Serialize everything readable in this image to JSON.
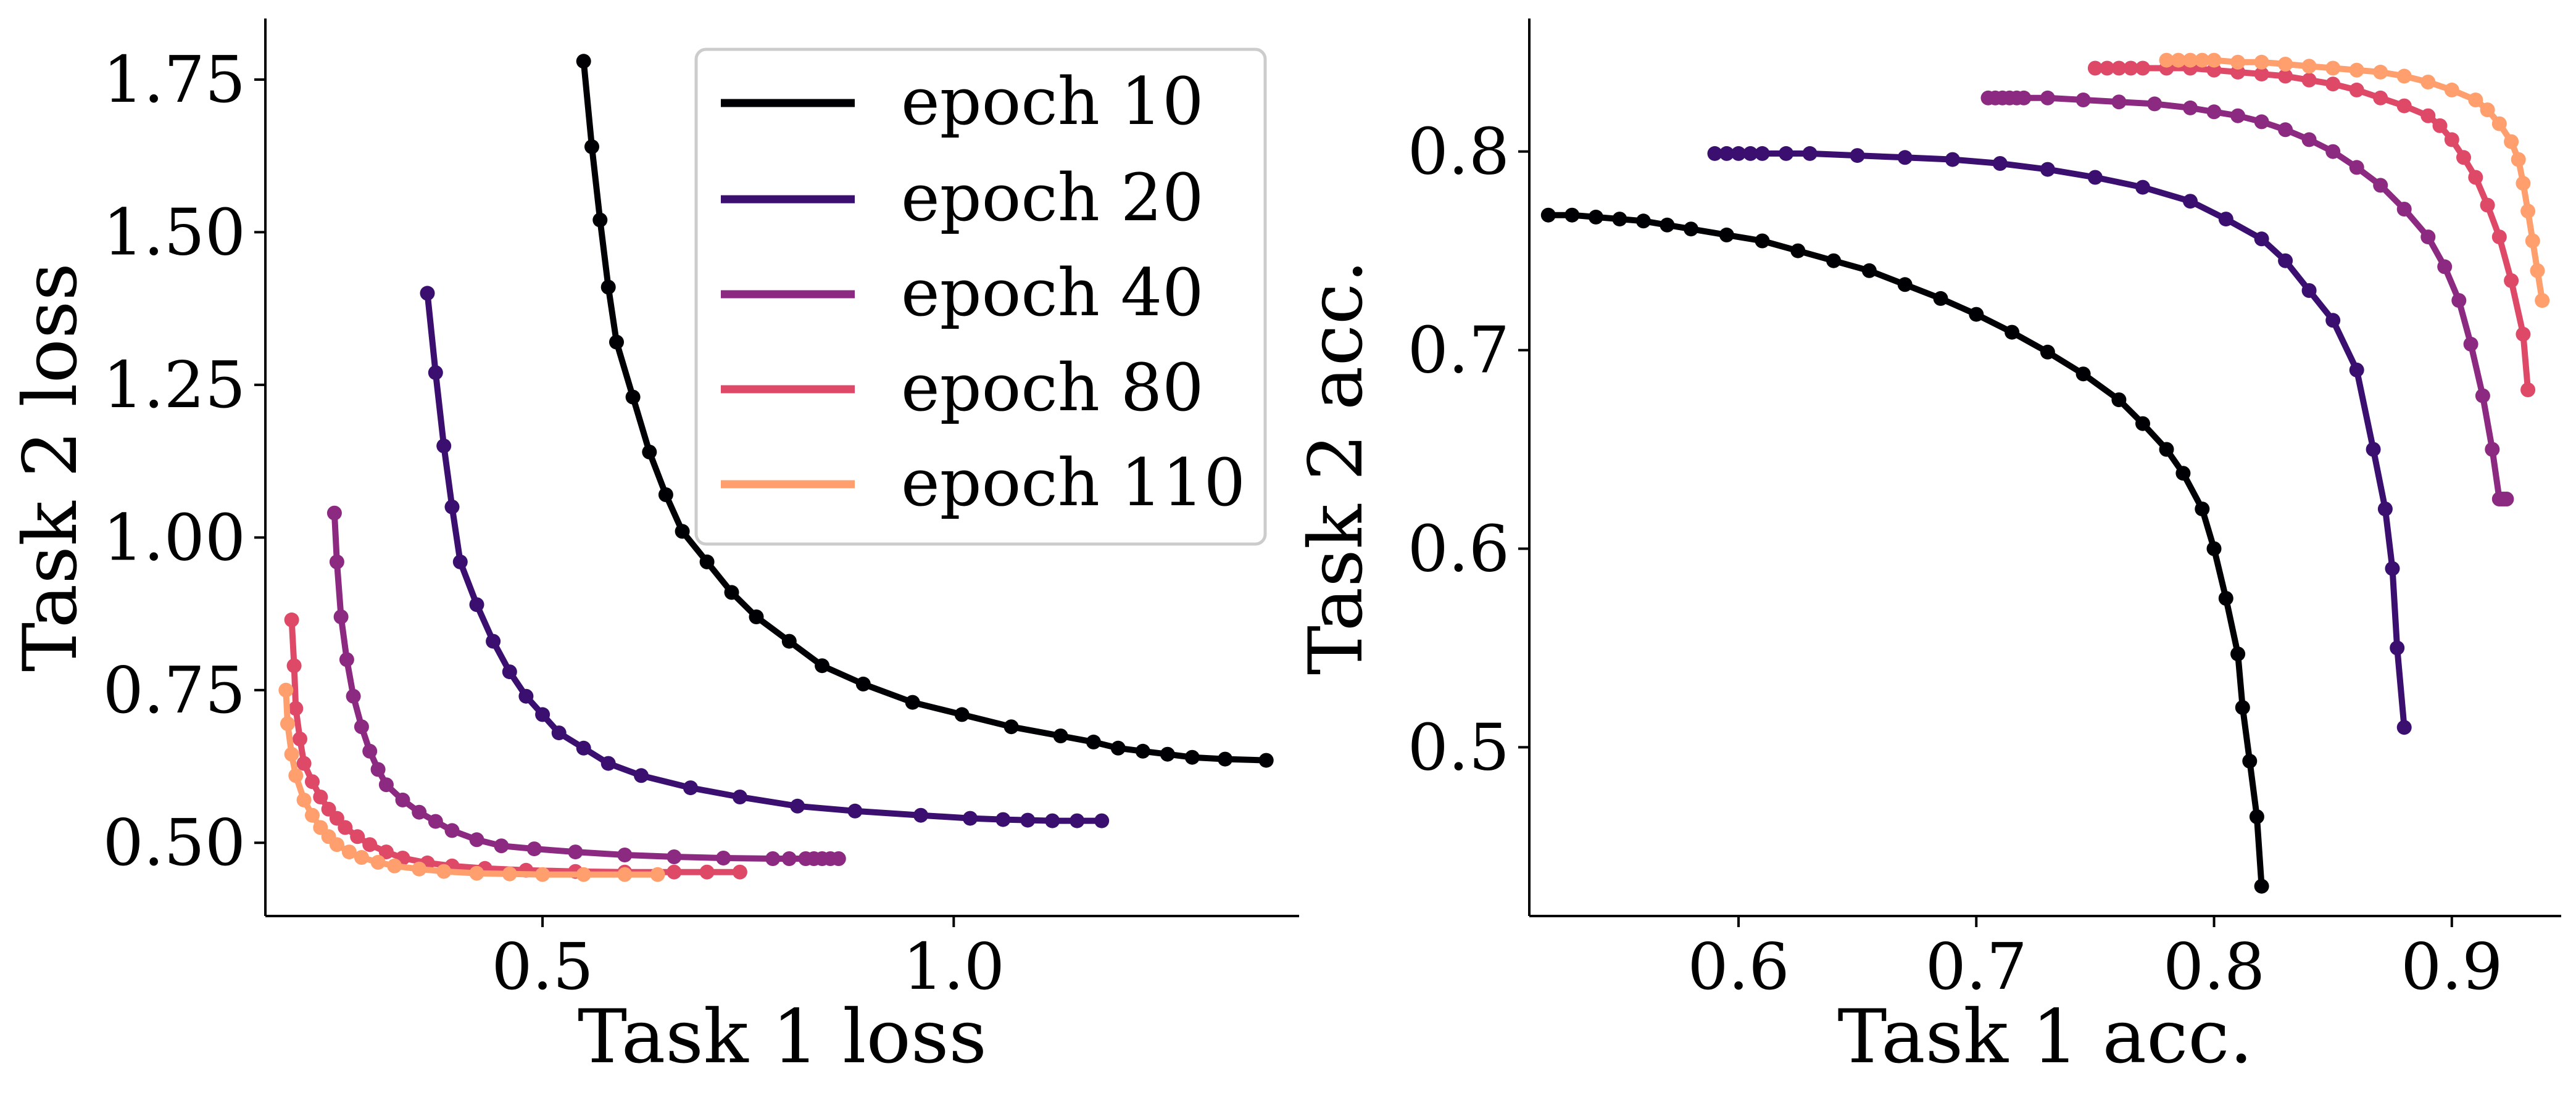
{
  "chart_data": [
    {
      "type": "line",
      "xlabel": "Task 1 loss",
      "ylabel": "Task 2 loss",
      "xlim": [
        0.163,
        1.42
      ],
      "ylim": [
        0.38,
        1.85
      ],
      "xticks": [
        0.5,
        1.0
      ],
      "xtick_labels": [
        "0.5",
        "1.0"
      ],
      "yticks": [
        0.5,
        0.75,
        1.0,
        1.25,
        1.5,
        1.75
      ],
      "ytick_labels": [
        "0.50",
        "0.75",
        "1.00",
        "1.25",
        "1.50",
        "1.75"
      ],
      "grid": false,
      "legend_position": "top-right",
      "series": [
        {
          "name": "epoch 10",
          "color": "#000004",
          "x": [
            0.55,
            0.56,
            0.57,
            0.58,
            0.59,
            0.61,
            0.63,
            0.65,
            0.67,
            0.7,
            0.73,
            0.76,
            0.8,
            0.84,
            0.89,
            0.95,
            1.01,
            1.07,
            1.13,
            1.17,
            1.2,
            1.23,
            1.26,
            1.29,
            1.33,
            1.38
          ],
          "y": [
            1.78,
            1.64,
            1.52,
            1.41,
            1.32,
            1.23,
            1.14,
            1.07,
            1.01,
            0.96,
            0.91,
            0.87,
            0.83,
            0.79,
            0.76,
            0.73,
            0.71,
            0.69,
            0.675,
            0.665,
            0.655,
            0.65,
            0.645,
            0.64,
            0.637,
            0.635
          ]
        },
        {
          "name": "epoch 20",
          "color": "#3b0f70",
          "x": [
            0.36,
            0.37,
            0.38,
            0.39,
            0.4,
            0.42,
            0.44,
            0.46,
            0.48,
            0.5,
            0.52,
            0.55,
            0.58,
            0.62,
            0.68,
            0.74,
            0.81,
            0.88,
            0.96,
            1.02,
            1.06,
            1.09,
            1.12,
            1.15,
            1.18
          ],
          "y": [
            1.4,
            1.27,
            1.15,
            1.05,
            0.96,
            0.89,
            0.83,
            0.78,
            0.74,
            0.71,
            0.68,
            0.655,
            0.63,
            0.61,
            0.59,
            0.575,
            0.56,
            0.552,
            0.545,
            0.54,
            0.538,
            0.537,
            0.536,
            0.536,
            0.536
          ]
        },
        {
          "name": "epoch 40",
          "color": "#8c2981",
          "x": [
            0.247,
            0.25,
            0.255,
            0.262,
            0.27,
            0.28,
            0.29,
            0.3,
            0.31,
            0.33,
            0.35,
            0.37,
            0.39,
            0.42,
            0.45,
            0.49,
            0.54,
            0.6,
            0.66,
            0.72,
            0.78,
            0.8,
            0.82,
            0.83,
            0.84,
            0.85,
            0.86
          ],
          "y": [
            1.04,
            0.96,
            0.87,
            0.8,
            0.74,
            0.69,
            0.65,
            0.62,
            0.595,
            0.57,
            0.55,
            0.535,
            0.52,
            0.505,
            0.495,
            0.49,
            0.485,
            0.48,
            0.477,
            0.475,
            0.474,
            0.474,
            0.474,
            0.474,
            0.474,
            0.474,
            0.474
          ]
        },
        {
          "name": "epoch 80",
          "color": "#de4968",
          "x": [
            0.195,
            0.198,
            0.2,
            0.205,
            0.21,
            0.22,
            0.23,
            0.24,
            0.25,
            0.26,
            0.275,
            0.29,
            0.31,
            0.33,
            0.36,
            0.39,
            0.43,
            0.48,
            0.54,
            0.6,
            0.66,
            0.7,
            0.74
          ],
          "y": [
            0.865,
            0.79,
            0.72,
            0.67,
            0.63,
            0.6,
            0.575,
            0.555,
            0.54,
            0.525,
            0.51,
            0.497,
            0.485,
            0.475,
            0.467,
            0.462,
            0.458,
            0.455,
            0.453,
            0.452,
            0.452,
            0.452,
            0.452
          ]
        },
        {
          "name": "epoch 110",
          "color": "#fe9f6d",
          "x": [
            0.188,
            0.19,
            0.195,
            0.2,
            0.21,
            0.22,
            0.23,
            0.24,
            0.25,
            0.265,
            0.28,
            0.3,
            0.32,
            0.35,
            0.38,
            0.42,
            0.46,
            0.5,
            0.55,
            0.6,
            0.64
          ],
          "y": [
            0.75,
            0.695,
            0.645,
            0.61,
            0.57,
            0.545,
            0.525,
            0.51,
            0.497,
            0.485,
            0.476,
            0.468,
            0.462,
            0.457,
            0.453,
            0.45,
            0.449,
            0.448,
            0.448,
            0.448,
            0.448
          ]
        }
      ]
    },
    {
      "type": "line",
      "xlabel": "Task 1 acc.",
      "ylabel": "Task 2 acc.",
      "xlim": [
        0.512,
        0.946
      ],
      "ylim": [
        0.415,
        0.867
      ],
      "xticks": [
        0.6,
        0.7,
        0.8,
        0.9
      ],
      "xtick_labels": [
        "0.6",
        "0.7",
        "0.8",
        "0.9"
      ],
      "yticks": [
        0.5,
        0.6,
        0.7,
        0.8
      ],
      "ytick_labels": [
        "0.5",
        "0.6",
        "0.7",
        "0.8"
      ],
      "grid": false,
      "series": [
        {
          "name": "epoch 10",
          "color": "#000004",
          "x": [
            0.52,
            0.53,
            0.54,
            0.55,
            0.56,
            0.57,
            0.58,
            0.595,
            0.61,
            0.625,
            0.64,
            0.655,
            0.67,
            0.685,
            0.7,
            0.715,
            0.73,
            0.745,
            0.76,
            0.77,
            0.78,
            0.787,
            0.795,
            0.8,
            0.805,
            0.81,
            0.812,
            0.815,
            0.818,
            0.82
          ],
          "y": [
            0.768,
            0.768,
            0.767,
            0.766,
            0.765,
            0.763,
            0.761,
            0.758,
            0.755,
            0.75,
            0.745,
            0.74,
            0.733,
            0.726,
            0.718,
            0.709,
            0.699,
            0.688,
            0.675,
            0.663,
            0.65,
            0.638,
            0.62,
            0.6,
            0.575,
            0.547,
            0.52,
            0.493,
            0.465,
            0.43
          ]
        },
        {
          "name": "epoch 20",
          "color": "#3b0f70",
          "x": [
            0.59,
            0.595,
            0.6,
            0.605,
            0.61,
            0.62,
            0.63,
            0.65,
            0.67,
            0.69,
            0.71,
            0.73,
            0.75,
            0.77,
            0.79,
            0.805,
            0.82,
            0.83,
            0.84,
            0.85,
            0.86,
            0.867,
            0.872,
            0.875,
            0.877,
            0.88
          ],
          "y": [
            0.799,
            0.799,
            0.799,
            0.799,
            0.799,
            0.799,
            0.799,
            0.798,
            0.797,
            0.796,
            0.794,
            0.791,
            0.787,
            0.782,
            0.775,
            0.766,
            0.756,
            0.745,
            0.73,
            0.715,
            0.69,
            0.65,
            0.62,
            0.59,
            0.55,
            0.51
          ]
        },
        {
          "name": "epoch 40",
          "color": "#8c2981",
          "x": [
            0.705,
            0.708,
            0.711,
            0.714,
            0.717,
            0.72,
            0.73,
            0.745,
            0.76,
            0.775,
            0.79,
            0.8,
            0.81,
            0.82,
            0.83,
            0.84,
            0.85,
            0.86,
            0.87,
            0.88,
            0.89,
            0.897,
            0.903,
            0.908,
            0.913,
            0.917,
            0.92,
            0.921,
            0.922,
            0.923
          ],
          "y": [
            0.827,
            0.827,
            0.827,
            0.827,
            0.827,
            0.827,
            0.827,
            0.826,
            0.825,
            0.824,
            0.822,
            0.82,
            0.818,
            0.815,
            0.811,
            0.806,
            0.8,
            0.792,
            0.783,
            0.771,
            0.757,
            0.742,
            0.725,
            0.703,
            0.677,
            0.65,
            0.625,
            0.625,
            0.625,
            0.625
          ]
        },
        {
          "name": "epoch 80",
          "color": "#de4968",
          "x": [
            0.75,
            0.755,
            0.76,
            0.765,
            0.77,
            0.78,
            0.79,
            0.8,
            0.81,
            0.82,
            0.83,
            0.84,
            0.85,
            0.86,
            0.87,
            0.88,
            0.89,
            0.895,
            0.9,
            0.905,
            0.91,
            0.915,
            0.92,
            0.925,
            0.93,
            0.932
          ],
          "y": [
            0.842,
            0.842,
            0.842,
            0.842,
            0.842,
            0.842,
            0.842,
            0.841,
            0.84,
            0.839,
            0.838,
            0.836,
            0.834,
            0.831,
            0.827,
            0.823,
            0.818,
            0.813,
            0.806,
            0.797,
            0.787,
            0.773,
            0.757,
            0.735,
            0.708,
            0.68
          ]
        },
        {
          "name": "epoch 110",
          "color": "#fe9f6d",
          "x": [
            0.78,
            0.785,
            0.79,
            0.795,
            0.8,
            0.81,
            0.82,
            0.83,
            0.84,
            0.85,
            0.86,
            0.87,
            0.88,
            0.89,
            0.9,
            0.91,
            0.915,
            0.92,
            0.925,
            0.928,
            0.93,
            0.932,
            0.934,
            0.936,
            0.938
          ],
          "y": [
            0.846,
            0.846,
            0.846,
            0.846,
            0.846,
            0.845,
            0.845,
            0.844,
            0.843,
            0.842,
            0.841,
            0.84,
            0.838,
            0.835,
            0.831,
            0.826,
            0.821,
            0.814,
            0.805,
            0.796,
            0.784,
            0.77,
            0.755,
            0.74,
            0.725
          ]
        }
      ]
    }
  ]
}
